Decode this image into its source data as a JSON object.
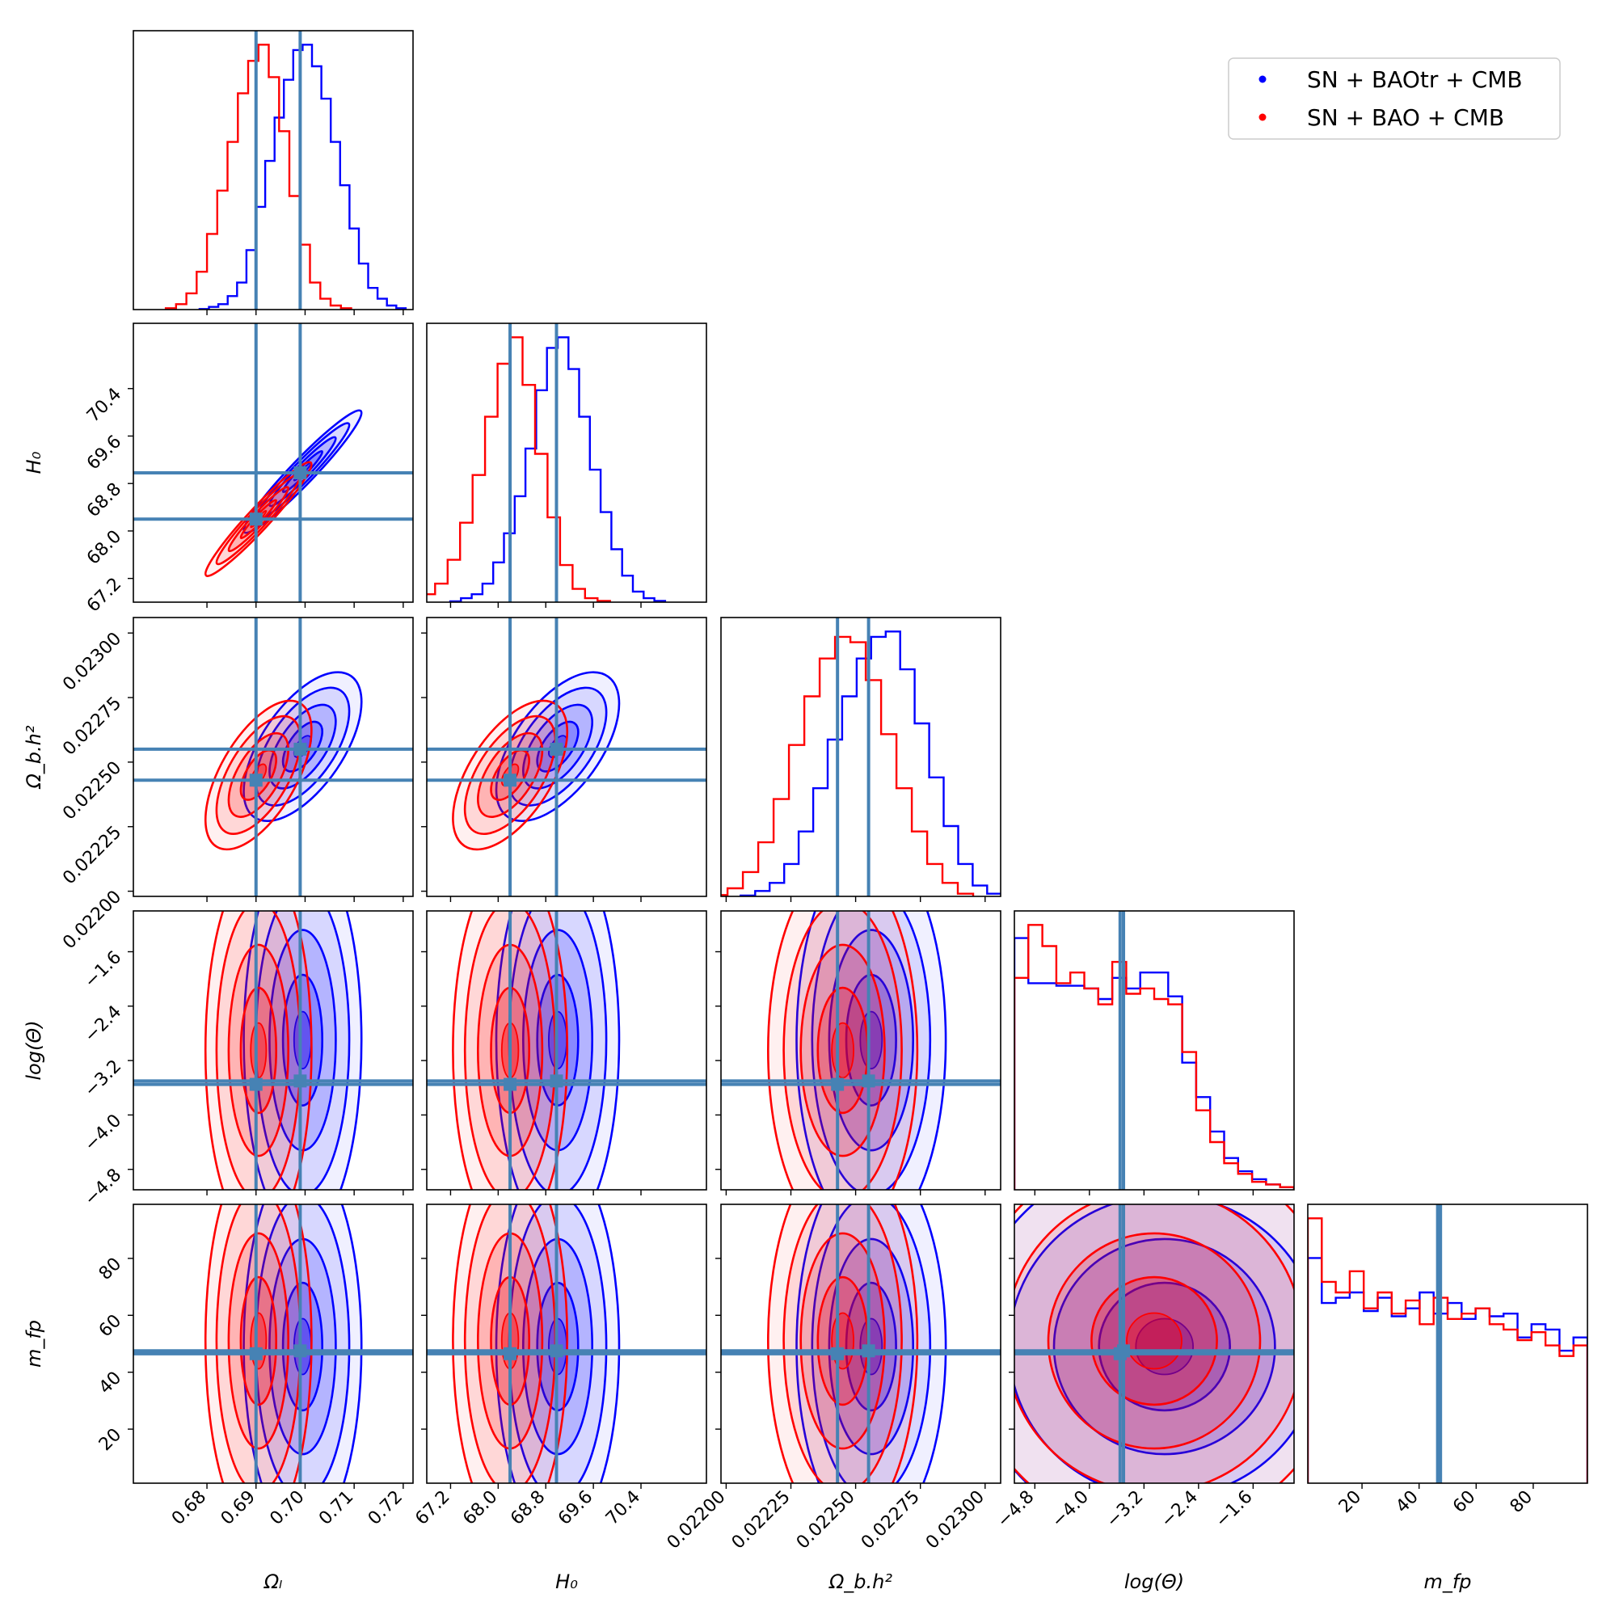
{
  "chart_data": {
    "type": "corner",
    "parameters": [
      {
        "key": "omega_l",
        "label": "Ωₗ",
        "range": [
          0.665,
          0.722
        ],
        "ticks": [
          0.68,
          0.69,
          0.7,
          0.71,
          0.72
        ],
        "tick_labels": [
          "0.68",
          "0.69",
          "0.70",
          "0.71",
          "0.72"
        ],
        "truths": [
          0.69,
          0.699
        ]
      },
      {
        "key": "h0",
        "label": "H₀",
        "range": [
          66.8,
          71.5
        ],
        "ticks": [
          67.2,
          68.0,
          68.8,
          69.6,
          70.4
        ],
        "tick_labels": [
          "67.2",
          "68.0",
          "68.8",
          "69.6",
          "70.4"
        ],
        "truths": [
          68.2,
          68.98
        ]
      },
      {
        "key": "omega_b_h2",
        "label": "Ω_b.h²",
        "range": [
          0.02198,
          0.02306
        ],
        "ticks": [
          0.022,
          0.02225,
          0.0225,
          0.02275,
          0.023
        ],
        "tick_labels": [
          "0.02200",
          "0.02225",
          "0.02250",
          "0.02275",
          "0.02300"
        ],
        "truths": [
          0.02243,
          0.02255
        ]
      },
      {
        "key": "log_theta",
        "label": "log(Θ)",
        "range": [
          -5.1,
          -1.0
        ],
        "ticks": [
          -4.8,
          -4.0,
          -3.2,
          -2.4,
          -1.6
        ],
        "tick_labels": [
          "−4.8",
          "−4.0",
          "−3.2",
          "−2.4",
          "−1.6"
        ],
        "truths": [
          -3.55,
          -3.5
        ]
      },
      {
        "key": "m_fp",
        "label": "m_fp",
        "range": [
          1,
          99
        ],
        "ticks": [
          20,
          40,
          60,
          80
        ],
        "tick_labels": [
          "20",
          "40",
          "60",
          "80"
        ],
        "truths": [
          46.5,
          47.5
        ]
      }
    ],
    "series": [
      {
        "name": "SN + BAOtr + CMB",
        "color": "#0000ff",
        "mean": [
          0.6995,
          69.0,
          0.02256,
          -2.9,
          49
        ],
        "sigma": [
          0.005,
          0.43,
          0.00012,
          1.2,
          28
        ],
        "corr": [
          [
            1,
            0.96,
            0.6,
            0,
            0
          ],
          [
            0.96,
            1,
            0.58,
            0,
            0
          ],
          [
            0.6,
            0.58,
            1,
            0,
            0
          ],
          [
            0,
            0,
            0,
            1,
            0
          ],
          [
            0,
            0,
            0,
            0,
            1
          ]
        ],
        "hist_omega_l": [
          0.2,
          1,
          2,
          5,
          10,
          22,
          38,
          55,
          71,
          85,
          96,
          98,
          90,
          78,
          62,
          46,
          30,
          17,
          8,
          4,
          1.5,
          0.5
        ],
        "hist_h0": [
          0.3,
          1.5,
          3,
          7,
          15,
          26,
          40,
          58,
          80,
          96,
          100,
          88,
          70,
          50,
          34,
          20,
          10,
          4,
          1.5,
          0.5
        ],
        "hist_omega_b_h2": [
          0.3,
          2,
          5,
          12,
          24,
          40,
          58,
          74,
          88,
          96,
          98,
          84,
          64,
          44,
          26,
          12,
          4,
          1
        ],
        "hist_log_theta": [
          95,
          78,
          78,
          77,
          77,
          76,
          72,
          80,
          76,
          82,
          82,
          73,
          48,
          35,
          22,
          12,
          7,
          4,
          2,
          1
        ],
        "hist_m_fp": [
          85,
          68,
          70,
          72,
          65,
          70,
          63,
          66,
          72,
          64,
          68,
          62,
          66,
          63,
          64,
          55,
          60,
          58,
          50,
          55
        ]
      },
      {
        "name": "SN + BAO + CMB",
        "color": "#ff0000",
        "mean": [
          0.6905,
          68.2,
          0.02245,
          -3.05,
          51
        ],
        "sigma": [
          0.0045,
          0.4,
          0.00012,
          1.15,
          28
        ],
        "corr": [
          [
            1,
            0.96,
            0.6,
            0,
            0
          ],
          [
            0.96,
            1,
            0.58,
            0,
            0
          ],
          [
            0.6,
            0.58,
            1,
            0,
            0
          ],
          [
            0,
            0,
            0,
            1,
            0
          ],
          [
            0,
            0,
            0,
            0,
            1
          ]
        ],
        "hist_omega_l": [
          0.5,
          2,
          6,
          14,
          28,
          44,
          62,
          80,
          92,
          98,
          86,
          66,
          42,
          24,
          10,
          4,
          1.5,
          0.5
        ],
        "hist_h0": [
          1,
          3,
          7,
          16,
          30,
          48,
          70,
          90,
          100,
          82,
          56,
          32,
          14,
          5,
          1.5,
          0.5
        ],
        "hist_omega_b_h2": [
          0.5,
          3,
          9,
          20,
          36,
          56,
          74,
          88,
          96,
          94,
          80,
          60,
          40,
          24,
          12,
          5,
          1
        ],
        "hist_log_theta": [
          80,
          100,
          92,
          78,
          82,
          76,
          70,
          86,
          74,
          76,
          72,
          70,
          52,
          30,
          18,
          10,
          6,
          3,
          2,
          1
        ],
        "hist_m_fp": [
          100,
          76,
          72,
          80,
          66,
          72,
          64,
          69,
          60,
          70,
          62,
          64,
          66,
          60,
          58,
          54,
          57,
          52,
          48,
          52
        ]
      }
    ],
    "legend": {
      "position": "top-right",
      "entries": [
        "SN + BAOtr + CMB",
        "SN + BAO + CMB"
      ]
    },
    "truth_color": "#4682b4"
  }
}
